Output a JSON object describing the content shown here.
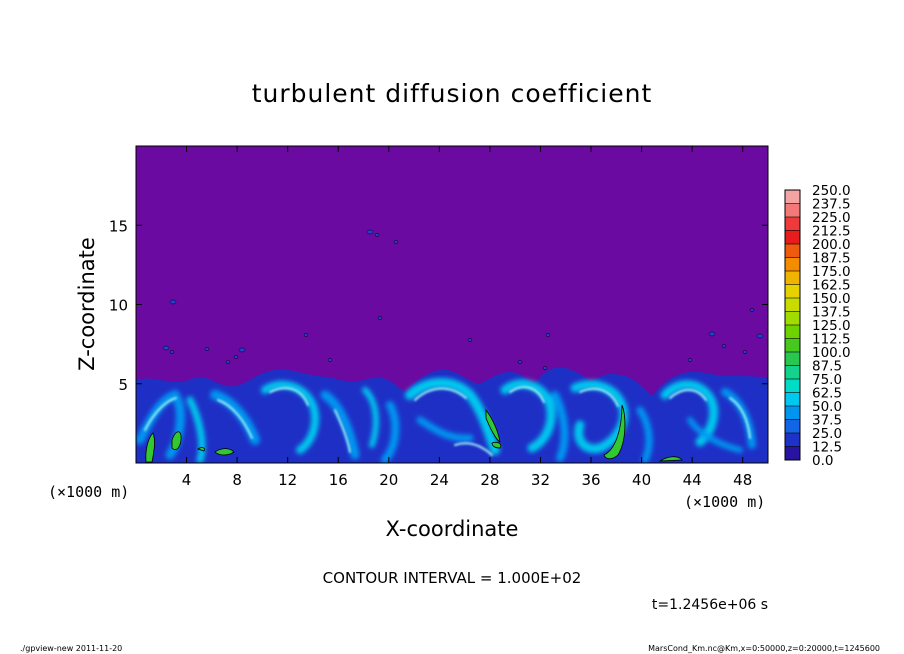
{
  "chart_data": {
    "type": "heatmap",
    "title": "turbulent diffusion coefficient",
    "xlabel": "X-coordinate",
    "ylabel": "Z-coordinate",
    "x_unit_left": "(×1000 m)",
    "x_unit_right": "(×1000 m)",
    "xlim": [
      0,
      50
    ],
    "ylim": [
      0,
      20
    ],
    "x_ticks": [
      4,
      8,
      12,
      16,
      20,
      24,
      28,
      32,
      36,
      40,
      44,
      48
    ],
    "y_ticks": [
      5,
      10,
      15
    ],
    "colorbar": {
      "levels": [
        "250.0",
        "237.5",
        "225.0",
        "212.5",
        "200.0",
        "187.5",
        "175.0",
        "162.5",
        "150.0",
        "137.5",
        "125.0",
        "112.5",
        "100.0",
        "87.5",
        "75.0",
        "62.5",
        "50.0",
        "37.5",
        "25.0",
        "12.5",
        "0.0"
      ],
      "colors": [
        "#f4a3a3",
        "#f47878",
        "#ee3a3a",
        "#e81c1c",
        "#f05a10",
        "#f58c00",
        "#f0b400",
        "#e6d200",
        "#c8dc00",
        "#a0dc00",
        "#6ed200",
        "#46c81e",
        "#28c850",
        "#14d28c",
        "#00dcc8",
        "#00c8ee",
        "#0096f0",
        "#1464e6",
        "#1e32c8",
        "#2814a0",
        "#640096"
      ]
    },
    "contour_interval": "CONTOUR INTERVAL = 1.000E+02",
    "time_label": "t=1.2456e+06 s",
    "background_color": "#6a0aa0"
  },
  "footer": {
    "left": "./gpview-new  2011-11-20",
    "right": "MarsCond_Km.nc@Km,x=0:50000,z=0:20000,t=1245600"
  }
}
